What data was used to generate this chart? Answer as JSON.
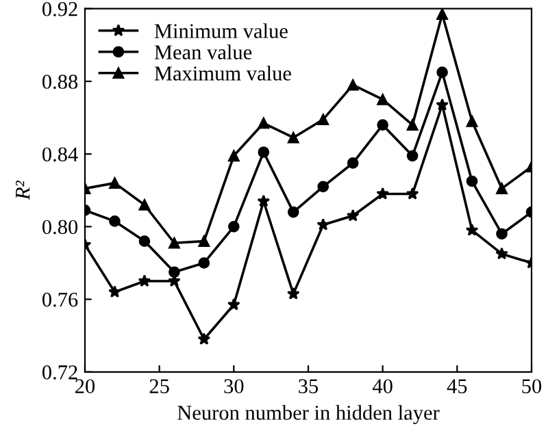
{
  "chart_data": {
    "type": "line",
    "xlabel": "Neuron number in hidden layer",
    "ylabel": "R²",
    "x": [
      20,
      22,
      24,
      26,
      28,
      30,
      32,
      34,
      36,
      38,
      40,
      42,
      44,
      46,
      48,
      50
    ],
    "series": [
      {
        "name": "Minimum value",
        "color": "#000000",
        "marker": "star",
        "values": [
          0.79,
          0.764,
          0.77,
          0.77,
          0.738,
          0.757,
          0.814,
          0.763,
          0.801,
          0.806,
          0.818,
          0.818,
          0.867,
          0.798,
          0.785,
          0.78
        ]
      },
      {
        "name": "Mean value",
        "color": "#000000",
        "marker": "circle",
        "values": [
          0.809,
          0.803,
          0.792,
          0.775,
          0.78,
          0.8,
          0.841,
          0.808,
          0.822,
          0.835,
          0.856,
          0.839,
          0.885,
          0.825,
          0.796,
          0.808
        ]
      },
      {
        "name": "Maximum value",
        "color": "#000000",
        "marker": "triangle",
        "values": [
          0.821,
          0.824,
          0.812,
          0.791,
          0.792,
          0.839,
          0.857,
          0.849,
          0.859,
          0.878,
          0.87,
          0.856,
          0.917,
          0.858,
          0.821,
          0.833
        ]
      }
    ],
    "xlim": [
      20,
      50
    ],
    "xticks": [
      20,
      25,
      30,
      35,
      40,
      45,
      50
    ],
    "ylim": [
      0.72,
      0.92
    ],
    "yticks": [
      {
        "value": 0.72,
        "label": "0.72"
      },
      {
        "value": 0.76,
        "label": "0.76"
      },
      {
        "value": 0.8,
        "label": "0.80"
      },
      {
        "value": 0.84,
        "label": "0.84"
      },
      {
        "value": 0.88,
        "label": "0.88"
      },
      {
        "value": 0.92,
        "label": "0.92"
      }
    ],
    "legend": "top left",
    "grid": false,
    "line_style": "solid"
  }
}
